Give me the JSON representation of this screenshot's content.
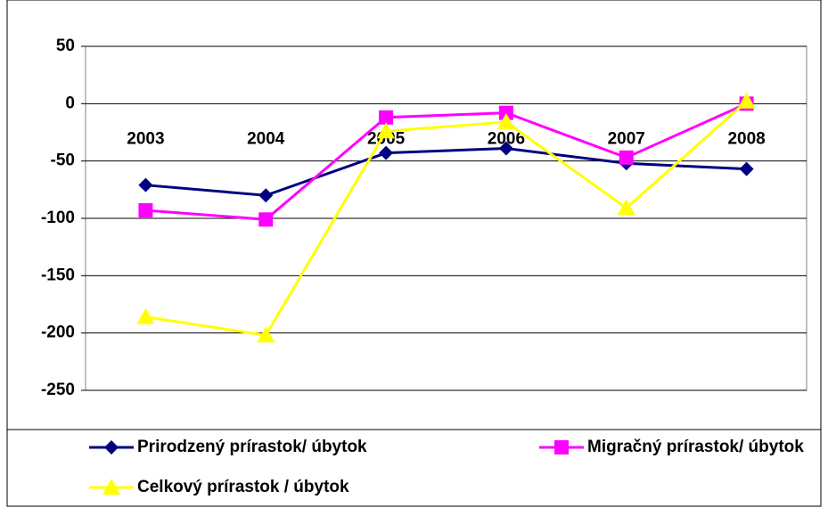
{
  "chart_data": {
    "type": "line",
    "categories": [
      "2003",
      "2004",
      "2005",
      "2006",
      "2007",
      "2008"
    ],
    "series": [
      {
        "name": "Prirodzený prírastok/ úbytok",
        "color": "#000080",
        "marker": "diamond",
        "values": [
          -71,
          -80,
          -43,
          -39,
          -52,
          -57
        ]
      },
      {
        "name": "Migračný prírastok/ úbytok",
        "color": "#ff00ff",
        "marker": "square",
        "values": [
          -93,
          -101,
          -12,
          -8,
          -47,
          0
        ]
      },
      {
        "name": "Celkový prírastok / úbytok",
        "color": "#ffff00",
        "marker": "triangle",
        "values": [
          -186,
          -202,
          -24,
          -16,
          -91,
          2
        ]
      }
    ],
    "ylim": [
      -250,
      50
    ],
    "yticks": [
      -250,
      -200,
      -150,
      -100,
      -50,
      0,
      50
    ],
    "grid": true,
    "legend": "bottom"
  }
}
